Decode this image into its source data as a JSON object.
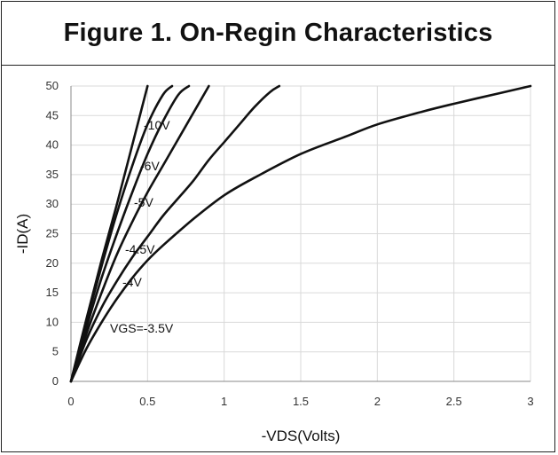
{
  "figure": {
    "title": "Figure 1. On-Regin Characteristics"
  },
  "chart_data": {
    "type": "line",
    "xlabel": "-VDS(Volts)",
    "ylabel": "-ID(A)",
    "xlim": [
      0,
      3
    ],
    "ylim": [
      0,
      50
    ],
    "x_ticks": [
      "0",
      "0.5",
      "1",
      "1.5",
      "2",
      "2.5",
      "3"
    ],
    "x_tick_values": [
      0,
      0.5,
      1,
      1.5,
      2,
      2.5,
      3
    ],
    "y_ticks": [
      "0",
      "5",
      "10",
      "15",
      "20",
      "25",
      "30",
      "35",
      "40",
      "45",
      "50"
    ],
    "y_tick_values": [
      0,
      5,
      10,
      15,
      20,
      25,
      30,
      35,
      40,
      45,
      50
    ],
    "grid": true,
    "series": [
      {
        "name": "-10V",
        "x": [
          0,
          0.1,
          0.2,
          0.3,
          0.4,
          0.5
        ],
        "y": [
          0,
          10.5,
          20.5,
          30,
          40,
          50
        ]
      },
      {
        "name": "-6V",
        "x": [
          0,
          0.1,
          0.2,
          0.3,
          0.4,
          0.5,
          0.6,
          0.66
        ],
        "y": [
          0,
          10,
          19.5,
          28.5,
          36.5,
          43.5,
          48.5,
          50
        ]
      },
      {
        "name": "-5V",
        "x": [
          0,
          0.1,
          0.2,
          0.3,
          0.4,
          0.5,
          0.6,
          0.7,
          0.77
        ],
        "y": [
          0,
          9,
          17.5,
          25,
          32,
          38.5,
          44,
          48.5,
          50
        ]
      },
      {
        "name": "-4.5V",
        "x": [
          0,
          0.1,
          0.2,
          0.3,
          0.4,
          0.5,
          0.6,
          0.7,
          0.8,
          0.9
        ],
        "y": [
          0,
          8,
          15,
          21.5,
          27,
          32,
          36.5,
          41,
          45.5,
          50
        ]
      },
      {
        "name": "-4V",
        "x": [
          0,
          0.1,
          0.2,
          0.3,
          0.4,
          0.5,
          0.6,
          0.7,
          0.8,
          0.9,
          1.0,
          1.1,
          1.2,
          1.3,
          1.36
        ],
        "y": [
          0,
          7,
          12.5,
          17,
          21,
          24.5,
          28,
          31,
          34,
          37.5,
          40.5,
          43.5,
          46.5,
          49,
          50
        ]
      },
      {
        "name": "VGS=-3.5V",
        "x": [
          0,
          0.1,
          0.2,
          0.3,
          0.4,
          0.5,
          0.6,
          0.8,
          1.0,
          1.2,
          1.5,
          1.8,
          2.0,
          2.3,
          2.5,
          2.8,
          3.0
        ],
        "y": [
          0,
          5.5,
          10,
          14,
          17.5,
          20.5,
          23,
          27.5,
          31.5,
          34.5,
          38.5,
          41.5,
          43.5,
          45.7,
          47,
          48.8,
          50
        ]
      }
    ],
    "curve_labels": [
      "-10V",
      "-6V",
      "-5V",
      "-4.5V",
      "-4V",
      "VGS=-3.5V"
    ]
  }
}
